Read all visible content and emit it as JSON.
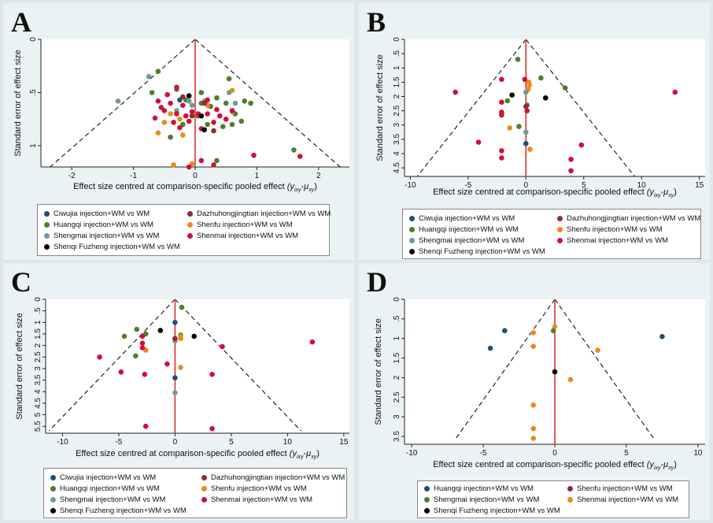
{
  "colors": {
    "Ciwujia": "#1f4e79",
    "Dazhuhongjingtian": "#8b2e34",
    "Huangqi": "#4f7f2a",
    "Shenfu": "#e88c1d",
    "Shengmai": "#6f9a9a",
    "Shenmai": "#d0103a",
    "ShenqiFuzheng": "#000000",
    "null_line": "#e03131",
    "funnel": "#222222"
  },
  "chart_data": [
    {
      "type": "scatter",
      "panel": "A",
      "title": "",
      "xlabel": "Effect size centred at comparison-specific pooled effect",
      "xlabel_math": "(y",
      "xlabel_sub1": "ixy",
      "xlabel_mid": "-μ",
      "xlabel_sub2": "xy",
      "xlabel_close": ")",
      "ylabel": "Standard error of effect size",
      "xlim": [
        -2.5,
        2.5
      ],
      "ylim": [
        0,
        1.2
      ],
      "y_reversed": true,
      "xticks": [
        -2,
        -1,
        0,
        1,
        2
      ],
      "xtick_labels": [
        "-2",
        "-1",
        "0",
        "1",
        "2"
      ],
      "yticks": [
        0,
        0.5,
        1
      ],
      "ytick_labels": [
        "0",
        ".5",
        "1"
      ],
      "funnel": {
        "x_left": -2.35,
        "x_right": 2.35,
        "y_bottom": 1.2
      },
      "legend": [
        {
          "key": "Ciwujia",
          "label": "Ciwujia injection+WM vs WM"
        },
        {
          "key": "Dazhuhongjingtian",
          "label": "Dazhuhongjingtian injection+WM vs WM"
        },
        {
          "key": "Huangqi",
          "label": "Huangqi injection+WM vs WM"
        },
        {
          "key": "Shenfu",
          "label": "Shenfu injection+WM vs WM"
        },
        {
          "key": "Shengmai",
          "label": "Shengmai injection+WM vs WM"
        },
        {
          "key": "Shenmai",
          "label": "Shenmai injection+WM vs WM"
        },
        {
          "key": "ShenqiFuzheng",
          "label": "Shenqi Fuzheng injection+WM vs WM"
        }
      ],
      "series": [
        {
          "key": "Huangqi",
          "points": [
            [
              -0.6,
              0.3
            ],
            [
              0.55,
              0.37
            ],
            [
              -0.3,
              0.47
            ],
            [
              0.1,
              0.5
            ],
            [
              0.35,
              0.55
            ],
            [
              0.5,
              0.6
            ],
            [
              0.8,
              0.58
            ],
            [
              -0.15,
              0.57
            ],
            [
              0.25,
              0.63
            ],
            [
              0.05,
              0.72
            ],
            [
              0.65,
              0.7
            ],
            [
              0.75,
              0.77
            ],
            [
              0.45,
              0.82
            ],
            [
              0.2,
              0.8
            ],
            [
              -0.2,
              0.8
            ],
            [
              -0.4,
              0.92
            ],
            [
              1.6,
              1.04
            ],
            [
              0.35,
              1.14
            ],
            [
              -0.7,
              0.5
            ],
            [
              0.9,
              0.6
            ],
            [
              0.1,
              0.6
            ],
            [
              0.6,
              0.8
            ]
          ]
        },
        {
          "key": "Shenfu",
          "points": [
            [
              -0.4,
              0.7
            ],
            [
              -0.25,
              0.75
            ],
            [
              -0.5,
              0.78
            ],
            [
              -0.6,
              0.88
            ],
            [
              -0.2,
              0.9
            ],
            [
              0.6,
              0.68
            ],
            [
              0.6,
              0.48
            ],
            [
              0.2,
              0.62
            ],
            [
              -0.35,
              1.18
            ],
            [
              -0.05,
              1.17
            ]
          ]
        },
        {
          "key": "Shengmai",
          "points": [
            [
              -1.25,
              0.58
            ],
            [
              -0.75,
              0.35
            ],
            [
              0.15,
              0.58
            ],
            [
              0.55,
              0.5
            ],
            [
              -0.1,
              0.58
            ],
            [
              -0.05,
              0.62
            ],
            [
              0.65,
              0.6
            ],
            [
              -0.3,
              0.67
            ]
          ]
        },
        {
          "key": "Shenmai",
          "points": [
            [
              -0.3,
              0.45
            ],
            [
              -0.45,
              0.52
            ],
            [
              -0.6,
              0.58
            ],
            [
              -0.4,
              0.6
            ],
            [
              -0.2,
              0.62
            ],
            [
              -0.5,
              0.67
            ],
            [
              -0.3,
              0.7
            ],
            [
              -0.15,
              0.72
            ],
            [
              0.05,
              0.7
            ],
            [
              0.2,
              0.7
            ],
            [
              0.4,
              0.72
            ],
            [
              -0.65,
              0.74
            ],
            [
              -0.1,
              0.77
            ],
            [
              0.3,
              0.78
            ],
            [
              0.1,
              0.84
            ],
            [
              -0.25,
              0.83
            ],
            [
              0.6,
              0.67
            ],
            [
              0.35,
              0.66
            ],
            [
              0.95,
              1.09
            ],
            [
              1.7,
              1.1
            ],
            [
              0.1,
              1.14
            ],
            [
              -0.1,
              1.2
            ],
            [
              0.3,
              1.18
            ],
            [
              0.2,
              0.57
            ],
            [
              -0.55,
              0.64
            ],
            [
              -0.35,
              0.78
            ],
            [
              0.5,
              0.75
            ],
            [
              -0.05,
              0.68
            ]
          ]
        },
        {
          "key": "Dazhuhongjingtian",
          "points": [
            [
              -0.2,
              0.54
            ],
            [
              0.15,
              0.6
            ],
            [
              0.3,
              0.86
            ],
            [
              -0.05,
              0.72
            ]
          ]
        },
        {
          "key": "Ciwujia",
          "points": [
            [
              -0.25,
              0.57
            ]
          ]
        },
        {
          "key": "ShenqiFuzheng",
          "points": [
            [
              0.1,
              0.72
            ],
            [
              -0.1,
              0.53
            ],
            [
              0.15,
              0.85
            ]
          ]
        }
      ]
    },
    {
      "type": "scatter",
      "panel": "B",
      "title": "",
      "xlabel": "Effect size centred at comparison-specific pooled effect",
      "xlabel_math": "(y",
      "xlabel_sub1": "ixy",
      "xlabel_mid": "-μ",
      "xlabel_sub2": "xy",
      "xlabel_close": ")",
      "ylabel": "Standard error of effect size",
      "xlim": [
        -10.5,
        15.5
      ],
      "ylim": [
        0,
        4.8
      ],
      "y_reversed": true,
      "xticks": [
        -10,
        -5,
        0,
        5,
        10,
        15
      ],
      "xtick_labels": [
        "-10",
        "-5",
        "0",
        "5",
        "10",
        "15"
      ],
      "yticks": [
        0,
        0.5,
        1,
        1.5,
        2,
        2.5,
        3,
        3.5,
        4,
        4.5
      ],
      "ytick_labels": [
        "0",
        ".5",
        "1",
        "1.5",
        "2",
        "2.5",
        "3",
        "3.5",
        "4",
        "4.5"
      ],
      "funnel": {
        "x_left": -9.4,
        "x_right": 9.4,
        "y_bottom": 4.8
      },
      "legend": [
        {
          "key": "Ciwujia",
          "label": "Ciwujia injection+WM vs WM"
        },
        {
          "key": "Dazhuhongjingtian",
          "label": "Dazhuhongjingtian injection+WM vs WM"
        },
        {
          "key": "Huangqi",
          "label": "Huangqi injection+WM vs WM"
        },
        {
          "key": "Shenfu",
          "label": "Shenfu injection+WM vs WM"
        },
        {
          "key": "Shengmai",
          "label": "Shengmai injection+WM vs WM"
        },
        {
          "key": "Shenmai",
          "label": "Shenmai injection+WM vs WM"
        },
        {
          "key": "ShenqiFuzheng",
          "label": "Shenqi Fuzheng injection+WM vs WM"
        }
      ],
      "series": [
        {
          "key": "Huangqi",
          "points": [
            [
              -0.7,
              0.7
            ],
            [
              1.3,
              1.35
            ],
            [
              3.4,
              1.7
            ],
            [
              -1.6,
              2.15
            ],
            [
              -0.6,
              3.05
            ],
            [
              0.1,
              2.3
            ]
          ]
        },
        {
          "key": "Shenfu",
          "points": [
            [
              0.25,
              1.5
            ],
            [
              0.3,
              1.6
            ],
            [
              0.2,
              1.75
            ],
            [
              -1.4,
              3.1
            ],
            [
              0.35,
              3.85
            ]
          ]
        },
        {
          "key": "Shengmai",
          "points": [
            [
              0,
              1.85
            ],
            [
              0,
              3.25
            ]
          ]
        },
        {
          "key": "Shenmai",
          "points": [
            [
              -6.1,
              1.85
            ],
            [
              -2.1,
              1.4
            ],
            [
              -0.1,
              1.4
            ],
            [
              -2.1,
              2.2
            ],
            [
              -2.1,
              2.55
            ],
            [
              -2.1,
              2.65
            ],
            [
              -4.1,
              3.6
            ],
            [
              -2.1,
              3.9
            ],
            [
              -2.1,
              4.15
            ],
            [
              4.8,
              3.7
            ],
            [
              3.9,
              4.2
            ],
            [
              3.9,
              4.6
            ],
            [
              12.9,
              1.85
            ],
            [
              0.1,
              2.5
            ]
          ]
        },
        {
          "key": "Dazhuhongjingtian",
          "points": [
            [
              0,
              2.35
            ]
          ]
        },
        {
          "key": "Ciwujia",
          "points": [
            [
              0,
              3.65
            ]
          ]
        },
        {
          "key": "ShenqiFuzheng",
          "points": [
            [
              -1.2,
              1.95
            ],
            [
              1.7,
              2.05
            ]
          ]
        }
      ]
    },
    {
      "type": "scatter",
      "panel": "C",
      "title": "",
      "xlabel": "Effect size centred at comparison-specific pooled effect",
      "xlabel_math": "(y",
      "xlabel_sub1": "ixy",
      "xlabel_mid": "-μ",
      "xlabel_sub2": "xy",
      "xlabel_close": ")",
      "ylabel": "Standard error of effect size",
      "xlim": [
        -11.5,
        15.5
      ],
      "ylim": [
        0,
        5.8
      ],
      "y_reversed": true,
      "xticks": [
        -10,
        -5,
        0,
        5,
        10,
        15
      ],
      "xtick_labels": [
        "-10",
        "-5",
        "0",
        "5",
        "10",
        "15"
      ],
      "yticks": [
        0,
        0.5,
        1,
        1.5,
        2,
        2.5,
        3,
        3.5,
        4,
        4.5,
        5,
        5.5
      ],
      "ytick_labels": [
        "0",
        ".5",
        "1",
        "1.5",
        "2",
        "2.5",
        "3",
        "3.5",
        "4",
        "4.5",
        "5",
        "5.5"
      ],
      "funnel": {
        "x_left": -11.2,
        "x_right": 11.2,
        "y_bottom": 5.7
      },
      "legend": [
        {
          "key": "Ciwujia",
          "label": "Ciwujia injection+WM vs WM"
        },
        {
          "key": "Dazhuhongjingtian",
          "label": "Dazhuhongjingtian injection+WM vs WM"
        },
        {
          "key": "Huangqi",
          "label": "Huangqi injection+WM vs WM"
        },
        {
          "key": "Shenfu",
          "label": "Shenfu injection+WM vs WM"
        },
        {
          "key": "Shengmai",
          "label": "Shengmai injection+WM vs WM"
        },
        {
          "key": "Shenmai",
          "label": "Shenmai injection+WM vs WM"
        },
        {
          "key": "ShenqiFuzheng",
          "label": "Shenqi Fuzheng injection+WM vs WM"
        }
      ],
      "series": [
        {
          "key": "Huangqi",
          "points": [
            [
              0.6,
              0.35
            ],
            [
              -3.4,
              1.3
            ],
            [
              -4.5,
              1.6
            ],
            [
              -2.6,
              1.5
            ],
            [
              -3.5,
              2.45
            ],
            [
              0.5,
              1.55
            ]
          ]
        },
        {
          "key": "Shenfu",
          "points": [
            [
              0.5,
              1.6
            ],
            [
              0.5,
              1.7
            ],
            [
              -2.6,
              2.2
            ],
            [
              0.5,
              2.95
            ]
          ]
        },
        {
          "key": "Shengmai",
          "points": [
            [
              0,
              1.7
            ],
            [
              0,
              1.8
            ],
            [
              0,
              4.05
            ]
          ]
        },
        {
          "key": "Shenmai",
          "points": [
            [
              -2.9,
              1.6
            ],
            [
              -2.9,
              1.9
            ],
            [
              -2.9,
              2.1
            ],
            [
              -6.7,
              2.5
            ],
            [
              -4.8,
              3.15
            ],
            [
              -2.7,
              3.25
            ],
            [
              -0.7,
              2.8
            ],
            [
              3.3,
              3.25
            ],
            [
              4.2,
              2.05
            ],
            [
              12.2,
              1.85
            ],
            [
              -2.6,
              5.5
            ],
            [
              3.3,
              5.6
            ]
          ]
        },
        {
          "key": "Dazhuhongjingtian",
          "points": [
            [
              0,
              1.7
            ]
          ]
        },
        {
          "key": "Ciwujia",
          "points": [
            [
              0,
              1.0
            ],
            [
              0,
              3.4
            ]
          ]
        },
        {
          "key": "ShenqiFuzheng",
          "points": [
            [
              -1.3,
              1.35
            ],
            [
              1.7,
              1.6
            ]
          ]
        }
      ]
    },
    {
      "type": "scatter",
      "panel": "D",
      "title": "",
      "xlabel": "Effect size centred at comparison-specific pooled effect",
      "xlabel_math": "(y",
      "xlabel_sub1": "ixy",
      "xlabel_mid": "-μ",
      "xlabel_sub2": "xy",
      "xlabel_close": ")",
      "ylabel": "Standard error of effect size",
      "xlim": [
        -10.5,
        10.5
      ],
      "ylim": [
        0,
        3.7
      ],
      "y_reversed": true,
      "xticks": [
        -10,
        -5,
        0,
        5,
        10
      ],
      "xtick_labels": [
        "-10",
        "-5",
        "0",
        "5",
        "10"
      ],
      "yticks": [
        0,
        0.5,
        1,
        1.5,
        2,
        2.5,
        3,
        3.5
      ],
      "ytick_labels": [
        "0",
        ".5",
        "1",
        "1.5",
        "2",
        "2.5",
        "3",
        "3.5"
      ],
      "funnel": {
        "x_left": -7.0,
        "x_right": 7.0,
        "y_bottom": 3.6
      },
      "legend": [
        {
          "key": "Ciwujia",
          "label": "Huangqi injection+WM vs WM"
        },
        {
          "key": "Dazhuhongjingtian",
          "label": "Shenfu injection+WM vs WM"
        },
        {
          "key": "Huangqi",
          "label": "Shengmai injection+WM vs WM"
        },
        {
          "key": "Shenfu",
          "label": "Shenmai injection+WM vs WM"
        },
        {
          "key": "ShenqiFuzheng",
          "label": "Shenqi Fuzheng injection+WM vs WM"
        }
      ],
      "series": [
        {
          "key": "Ciwujia",
          "points": [
            [
              -3.5,
              0.8
            ],
            [
              -4.5,
              1.25
            ],
            [
              7.5,
              0.95
            ]
          ]
        },
        {
          "key": "Shenfu",
          "points": [
            [
              -1.5,
              0.85
            ],
            [
              0,
              0.7
            ],
            [
              -1.5,
              1.2
            ],
            [
              3,
              1.3
            ],
            [
              1.1,
              2.05
            ],
            [
              -1.5,
              2.7
            ],
            [
              -1.5,
              3.3
            ],
            [
              -1.5,
              3.55
            ]
          ]
        },
        {
          "key": "Huangqi",
          "points": [
            [
              -0.1,
              0.8
            ]
          ]
        },
        {
          "key": "ShenqiFuzheng",
          "points": [
            [
              0,
              1.85
            ]
          ]
        }
      ]
    }
  ]
}
